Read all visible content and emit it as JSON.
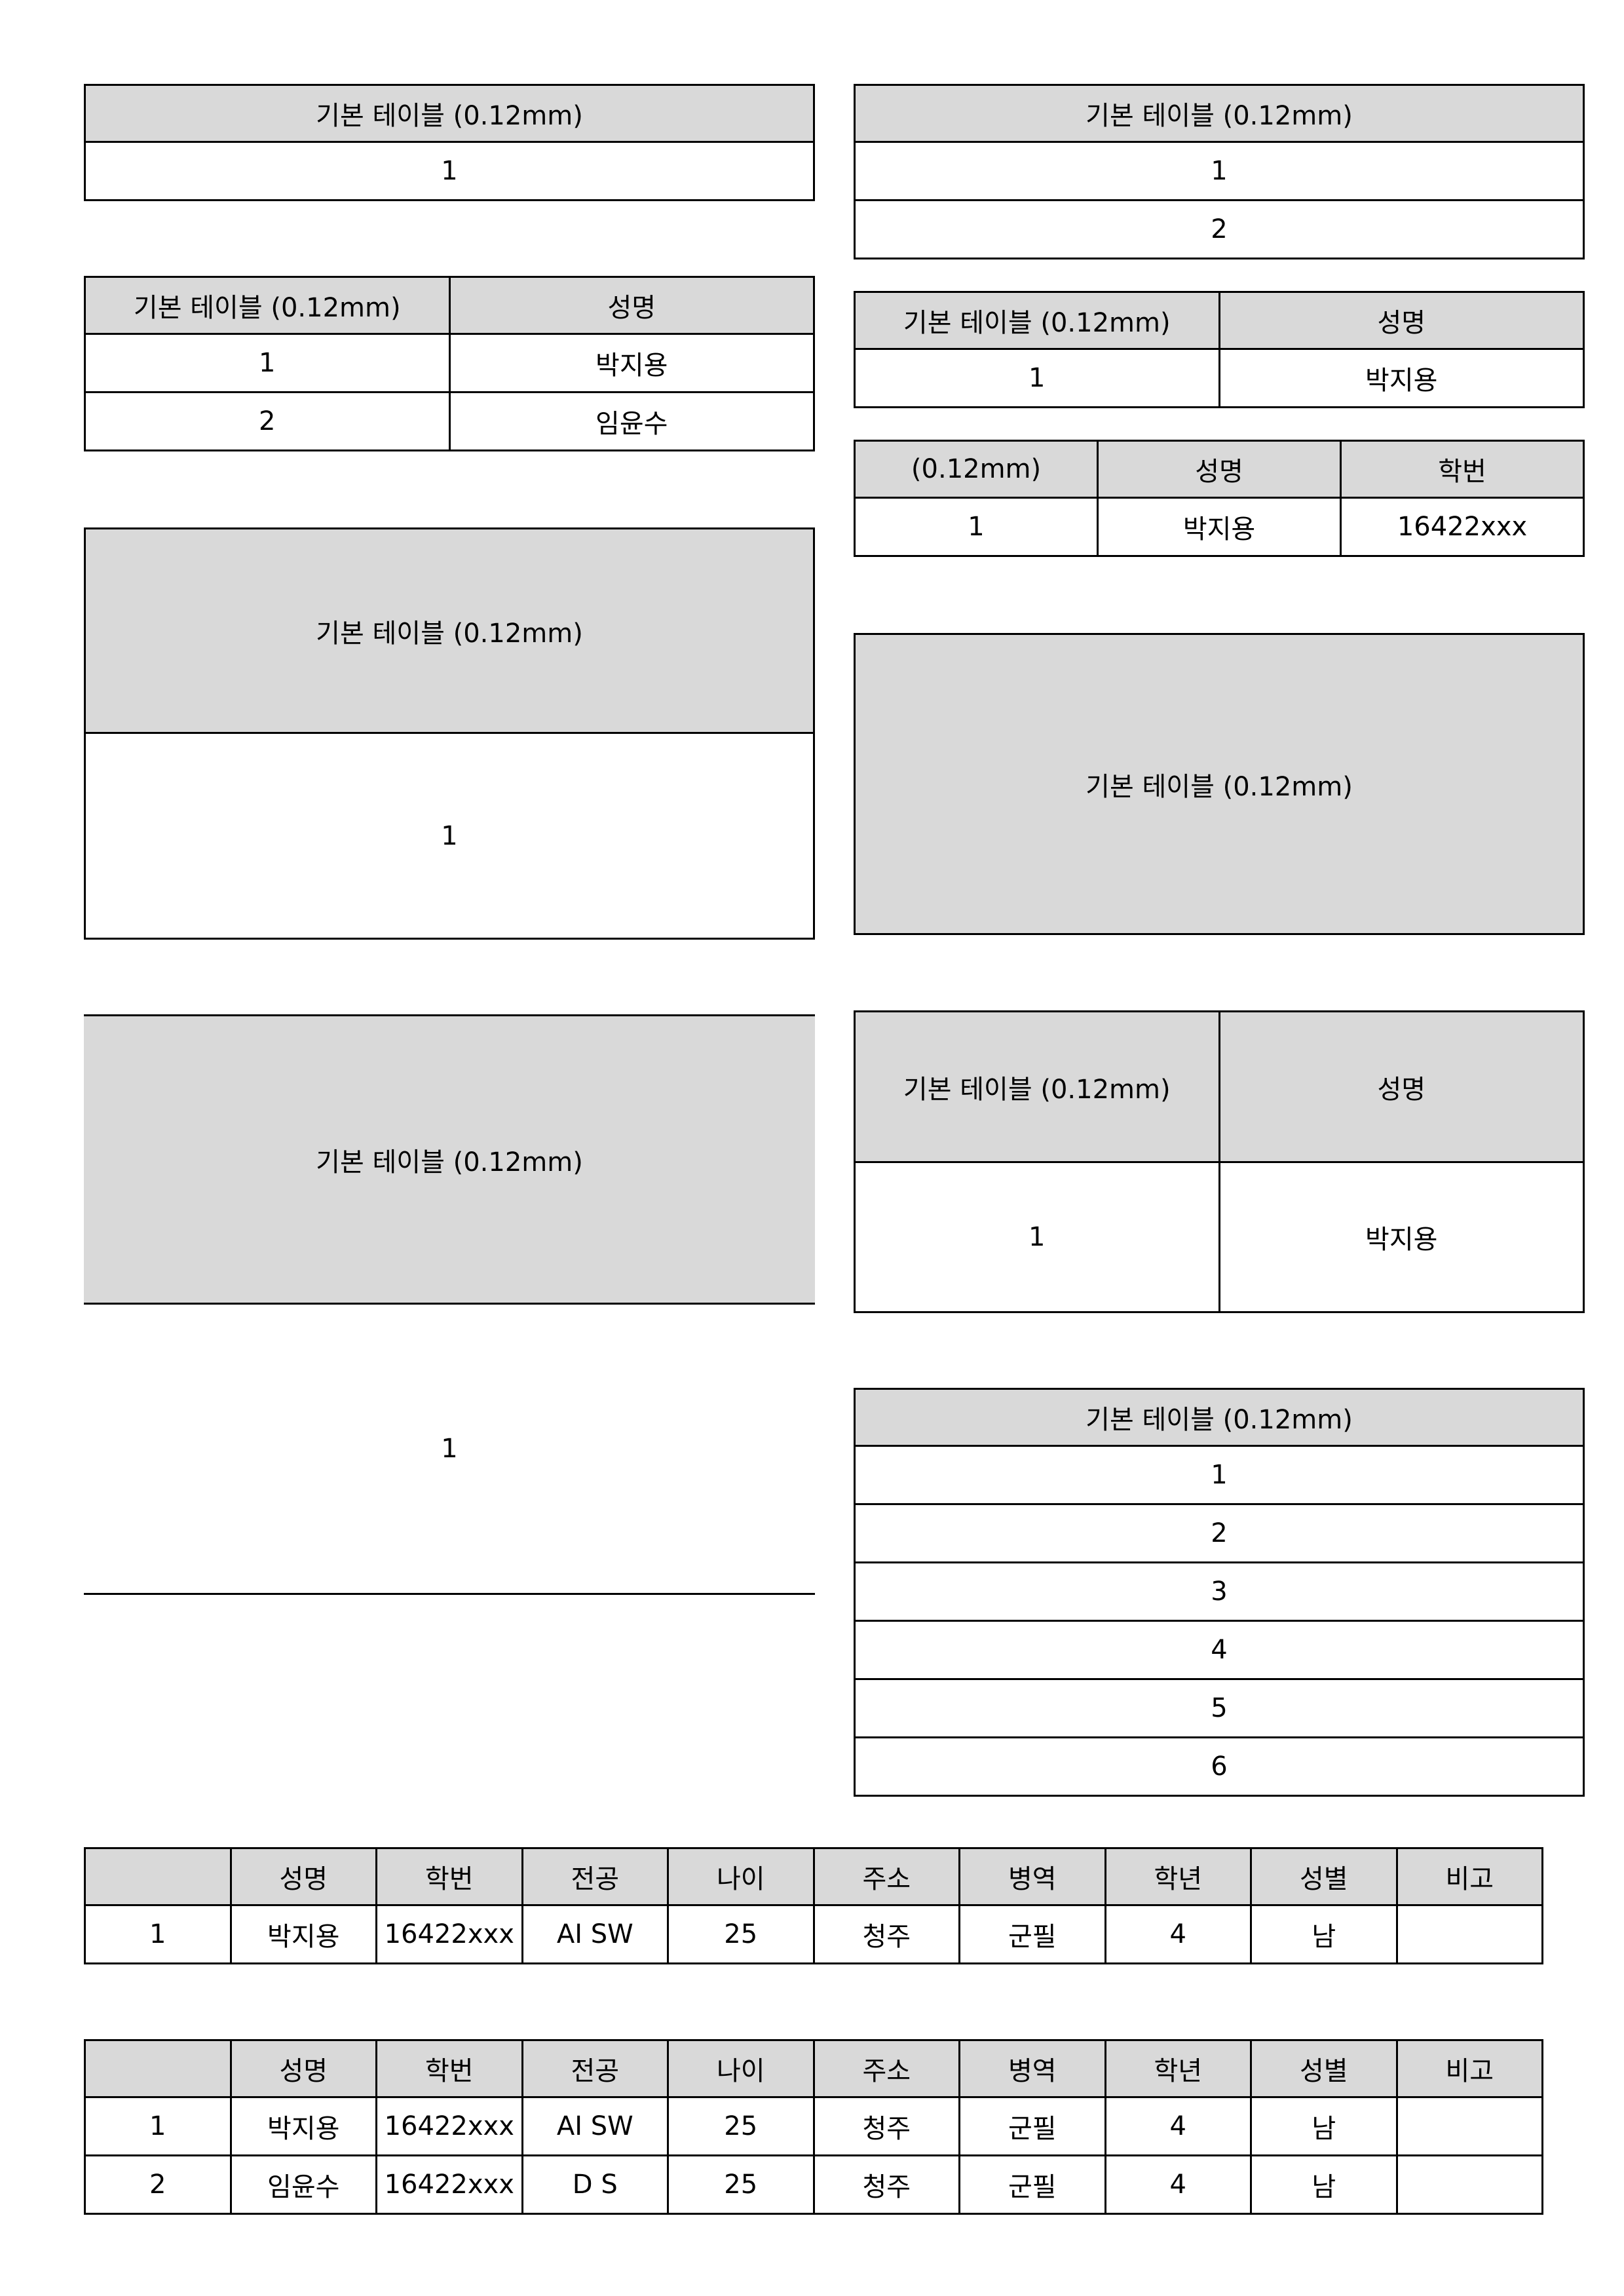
{
  "tables": {
    "t1": {
      "header": "기본 테이블 (0.12mm)",
      "rows": [
        "1"
      ]
    },
    "t2": {
      "header": "기본 테이블 (0.12mm)",
      "rows": [
        "1",
        "2"
      ]
    },
    "t3": {
      "header": [
        "기본 테이블 (0.12mm)",
        "성명"
      ],
      "rows": [
        [
          "1",
          "박지용"
        ],
        [
          "2",
          "임윤수"
        ]
      ]
    },
    "t4": {
      "header": [
        "기본 테이블 (0.12mm)",
        "성명"
      ],
      "rows": [
        [
          "1",
          "박지용"
        ]
      ]
    },
    "t5": {
      "header": [
        "(0.12mm)",
        "성명",
        "학번"
      ],
      "rows": [
        [
          "1",
          "박지용",
          "16422xxx"
        ]
      ]
    },
    "t6": {
      "header": "기본 테이블 (0.12mm)",
      "rows": [
        "1"
      ]
    },
    "t7": {
      "header": "기본 테이블 (0.12mm)"
    },
    "t8": {
      "header": "기본 테이블 (0.12mm)",
      "rows": [
        "1"
      ]
    },
    "t9": {
      "header": [
        "기본 테이블 (0.12mm)",
        "성명"
      ],
      "rows": [
        [
          "1",
          "박지용"
        ]
      ]
    },
    "t10": {
      "header": "기본 테이블 (0.12mm)",
      "rows": [
        "1",
        "2",
        "3",
        "4",
        "5",
        "6"
      ]
    },
    "t11": {
      "header": [
        "",
        "성명",
        "학번",
        "전공",
        "나이",
        "주소",
        "병역",
        "학년",
        "성별",
        "비고"
      ],
      "rows": [
        [
          "1",
          "박지용",
          "16422xxx",
          "AI SW",
          "25",
          "청주",
          "군필",
          "4",
          "남",
          ""
        ]
      ]
    },
    "t12": {
      "header": [
        "",
        "성명",
        "학번",
        "전공",
        "나이",
        "주소",
        "병역",
        "학년",
        "성별",
        "비고"
      ],
      "rows": [
        [
          "1",
          "박지용",
          "16422xxx",
          "AI SW",
          "25",
          "청주",
          "군필",
          "4",
          "남",
          ""
        ],
        [
          "2",
          "임윤수",
          "16422xxx",
          "D S",
          "25",
          "청주",
          "군필",
          "4",
          "남",
          ""
        ]
      ]
    }
  }
}
